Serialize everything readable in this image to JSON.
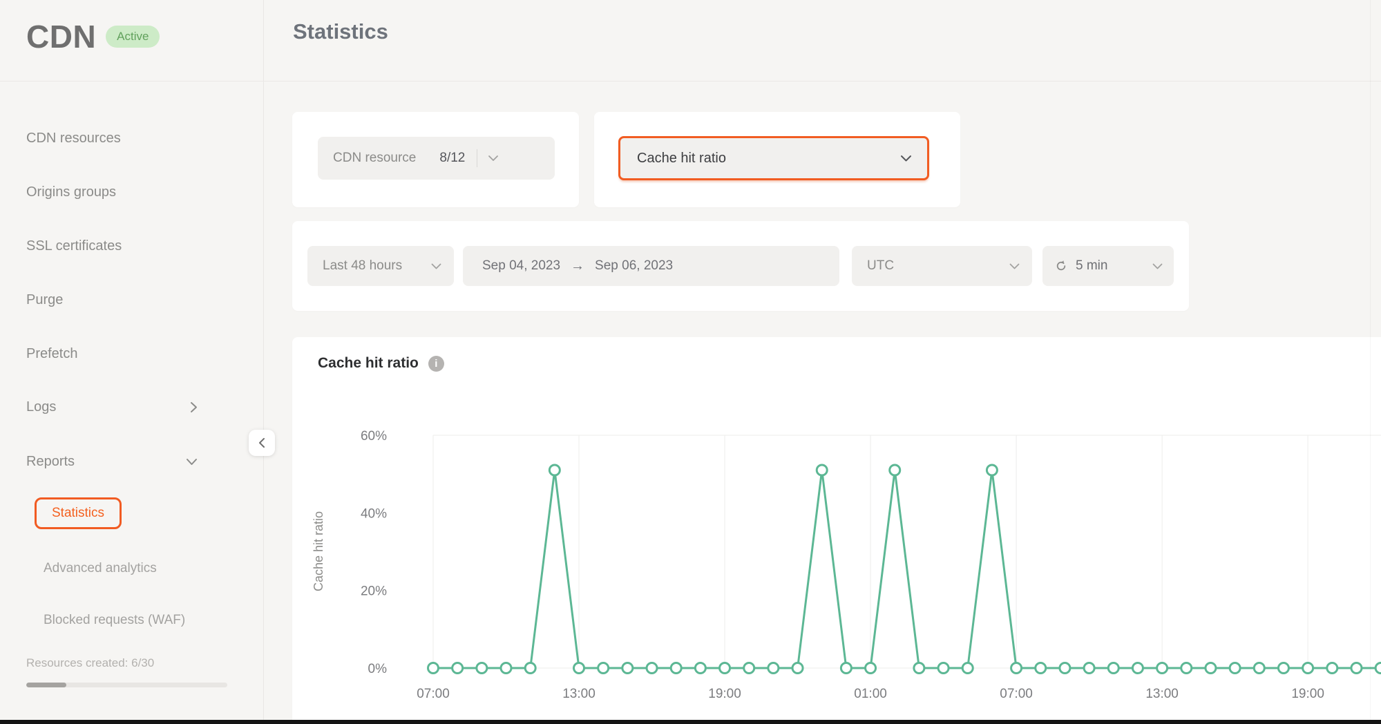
{
  "brand": {
    "logo": "CDN",
    "status_badge": "Active"
  },
  "header": {
    "title": "Statistics"
  },
  "sidebar": {
    "items": [
      {
        "label": "CDN resources"
      },
      {
        "label": "Origins groups"
      },
      {
        "label": "SSL certificates"
      },
      {
        "label": "Purge"
      },
      {
        "label": "Prefetch"
      },
      {
        "label": "Logs"
      },
      {
        "label": "Reports"
      }
    ],
    "reports_subitems": [
      {
        "label": "Statistics",
        "active": true
      },
      {
        "label": "Advanced analytics"
      },
      {
        "label": "Blocked requests (WAF)"
      }
    ],
    "resources_created_label": "Resources created: 6/30",
    "resources_progress_pct": 20
  },
  "filters": {
    "cdn_resource_label": "CDN resource",
    "cdn_resource_value": "8/12",
    "metric_value": "Cache hit ratio",
    "period_value": "Last 48 hours",
    "date_from": "Sep 04, 2023",
    "date_arrow": "→",
    "date_to": "Sep 06, 2023",
    "timezone_value": "UTC",
    "refresh_value": "5 min"
  },
  "chart_section": {
    "title": "Cache hit ratio"
  },
  "colors": {
    "accent_orange": "#F15B22",
    "line_green": "#5CB794",
    "badge_green_bg": "#CDEBC7",
    "badge_green_text": "#61A15C"
  },
  "chart_data": {
    "type": "line",
    "title": "Cache hit ratio",
    "ylabel": "Cache hit ratio",
    "ylim": [
      0,
      60
    ],
    "grid": true,
    "legend": false,
    "line_color": "#5CB794",
    "grid_color": "#EDEDEB",
    "axis_text_color": "#7B7C7F",
    "y_ticks": [
      {
        "label": "0%",
        "value": 0
      },
      {
        "label": "20%",
        "value": 20
      },
      {
        "label": "40%",
        "value": 40
      },
      {
        "label": "60%",
        "value": 60
      }
    ],
    "x_tick_labels": [
      "07:00",
      "13:00",
      "19:00",
      "01:00",
      "07:00",
      "13:00",
      "19:00"
    ],
    "x_tick_hours": [
      0,
      6,
      12,
      18,
      24,
      30,
      36
    ],
    "series": [
      {
        "name": "Cache hit ratio",
        "unit": "%",
        "times": [
          "07:00",
          "08:00",
          "09:00",
          "10:00",
          "11:00",
          "12:00",
          "13:00",
          "14:00",
          "15:00",
          "16:00",
          "17:00",
          "18:00",
          "19:00",
          "20:00",
          "21:00",
          "22:00",
          "23:00",
          "00:00",
          "01:00",
          "02:00",
          "03:00",
          "04:00",
          "05:00",
          "06:00",
          "07:00",
          "08:00",
          "09:00",
          "10:00",
          "11:00",
          "12:00",
          "13:00",
          "14:00",
          "15:00",
          "16:00",
          "17:00",
          "18:00",
          "19:00",
          "20:00",
          "21:00",
          "22:00"
        ],
        "values": [
          0,
          0,
          0,
          0,
          0,
          51,
          0,
          0,
          0,
          0,
          0,
          0,
          0,
          0,
          0,
          0,
          51,
          0,
          0,
          51,
          0,
          0,
          0,
          51,
          0,
          0,
          0,
          0,
          0,
          0,
          0,
          0,
          0,
          0,
          0,
          0,
          0,
          0,
          0,
          0
        ]
      }
    ]
  }
}
